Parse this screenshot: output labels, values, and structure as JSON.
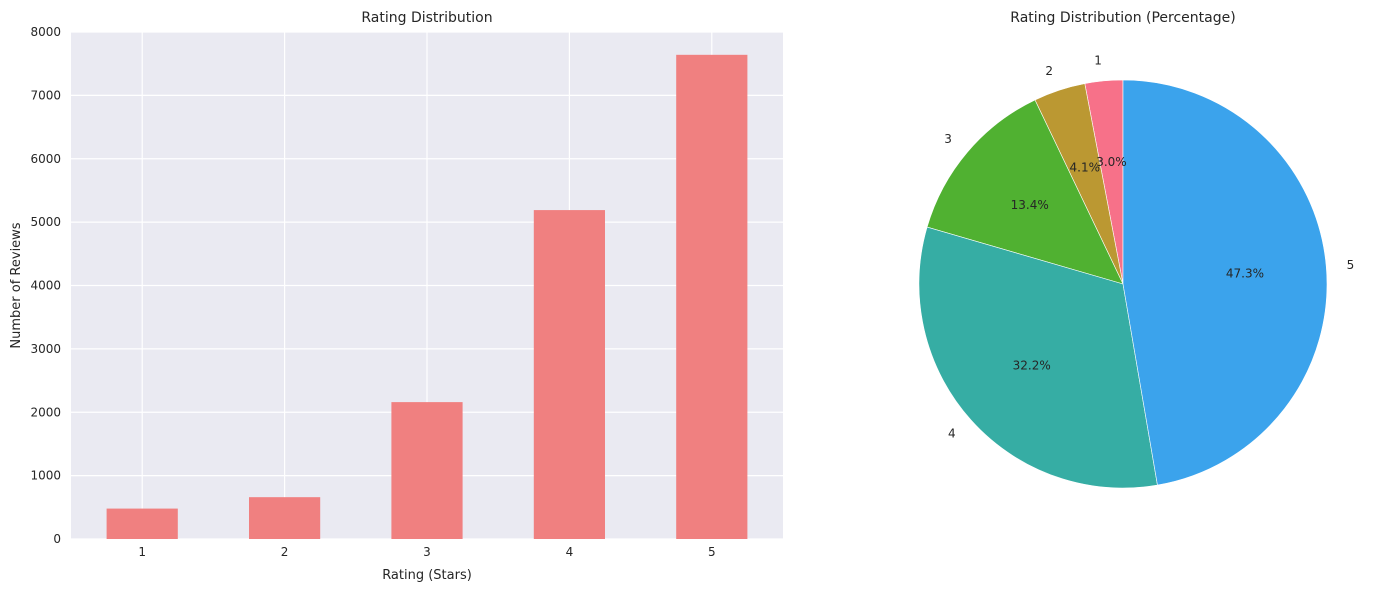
{
  "chart_data": [
    {
      "type": "bar",
      "title": "Rating Distribution",
      "xlabel": "Rating (Stars)",
      "ylabel": "Number of Reviews",
      "categories": [
        "1",
        "2",
        "3",
        "4",
        "5"
      ],
      "values": [
        480,
        660,
        2160,
        5190,
        7640
      ],
      "ylim": [
        0,
        8000
      ],
      "yticks": [
        "0",
        "1000",
        "2000",
        "3000",
        "4000",
        "5000",
        "6000",
        "7000",
        "8000"
      ],
      "grid": true,
      "bar_color": "#f08080",
      "background_color": "#eaeaf2"
    },
    {
      "type": "pie",
      "title": "Rating Distribution (Percentage)",
      "labels": [
        "1",
        "2",
        "3",
        "4",
        "5"
      ],
      "values": [
        3.0,
        4.1,
        13.4,
        32.2,
        47.3
      ],
      "value_labels": [
        "3.0%",
        "4.1%",
        "13.4%",
        "32.2%",
        "47.3%"
      ],
      "colors": [
        "#f77189",
        "#bb9832",
        "#50b131",
        "#36ada4",
        "#3ba3ec"
      ],
      "start_angle": 90,
      "counterclock": true
    }
  ]
}
